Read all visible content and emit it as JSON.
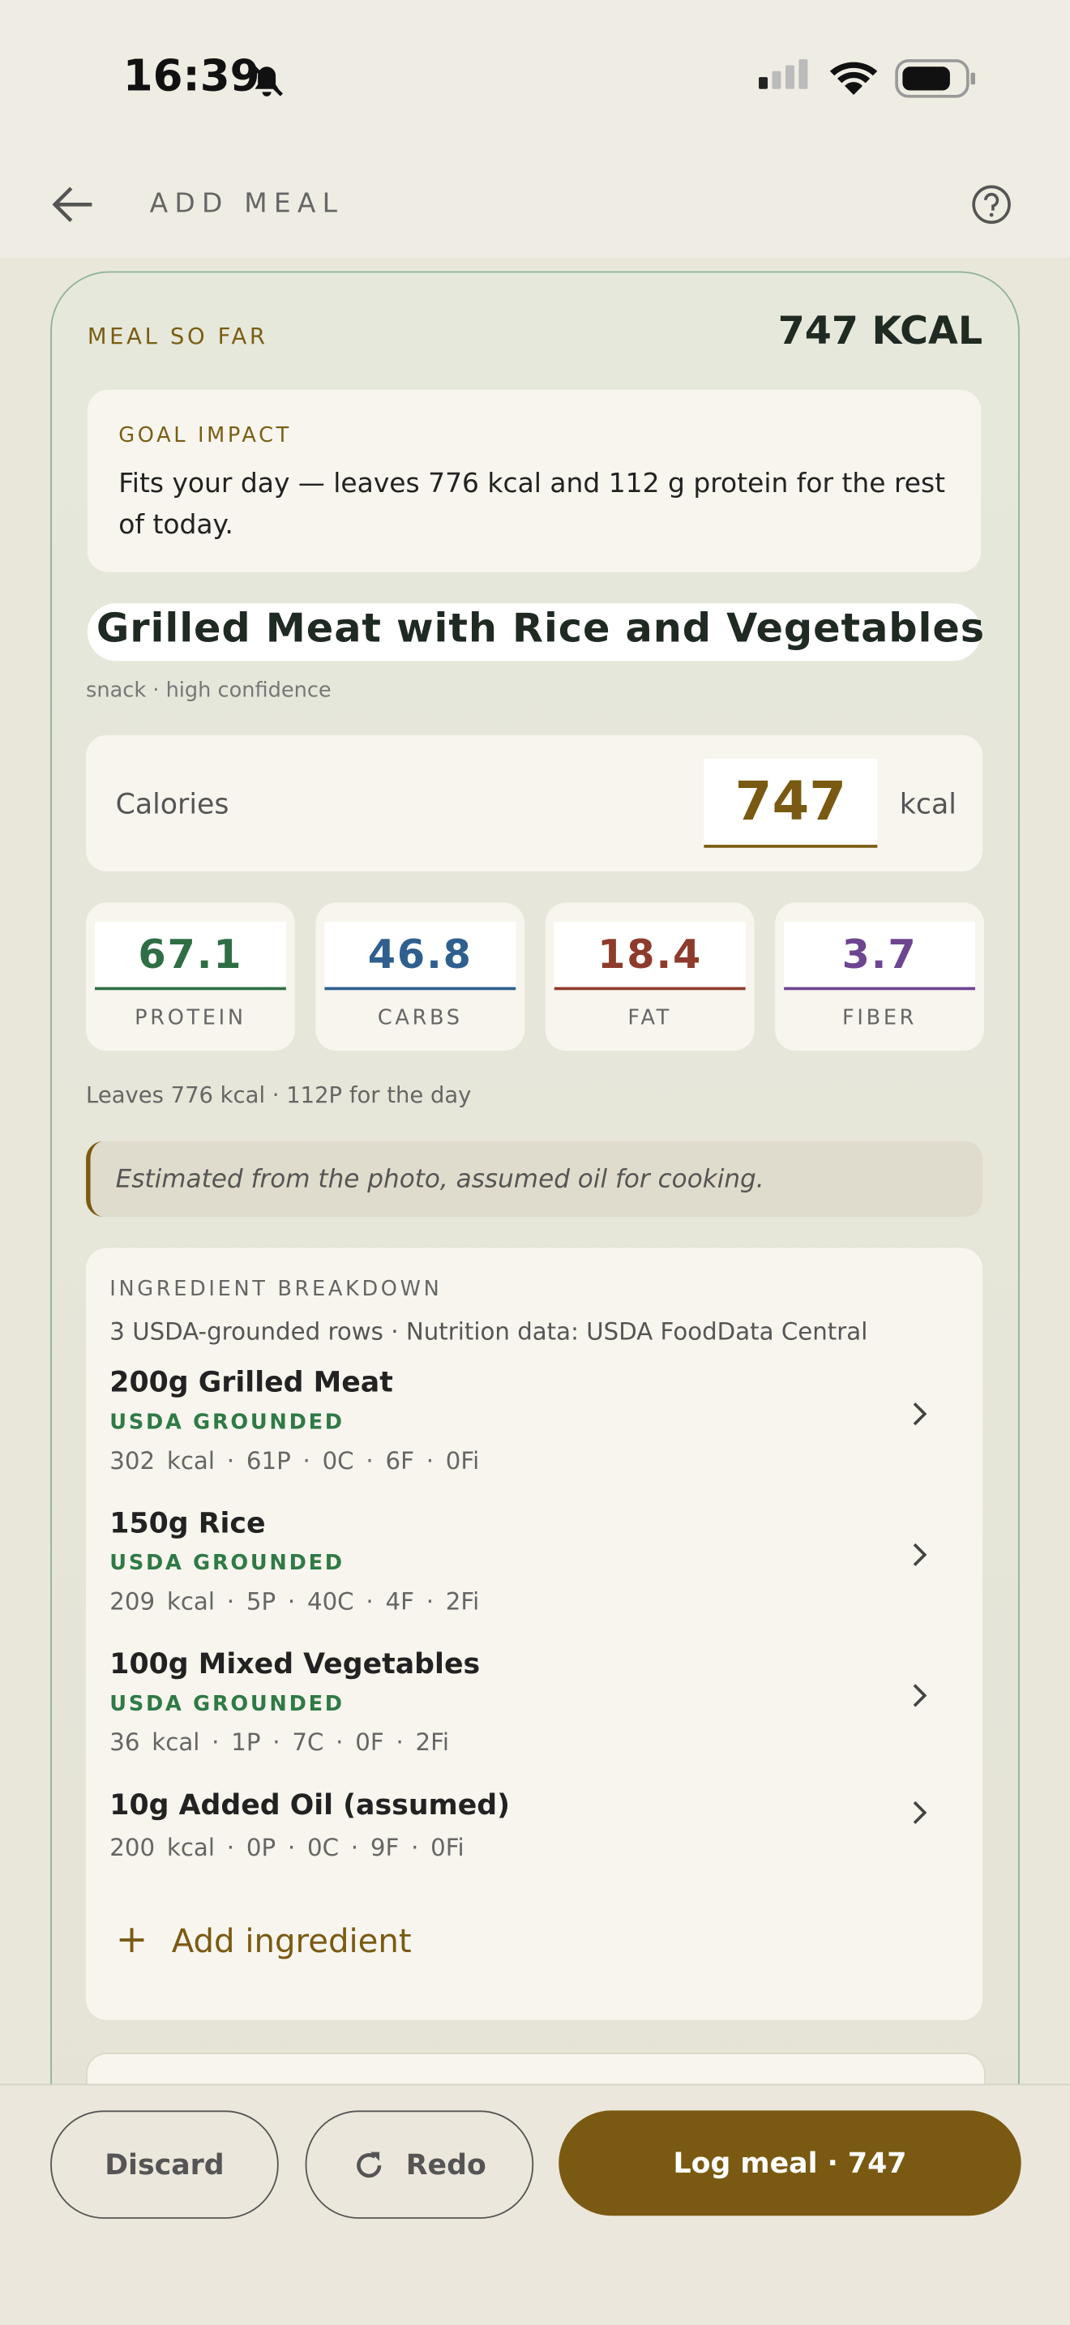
{
  "status_bar": {
    "time": "16:39"
  },
  "header": {
    "title": "ADD MEAL"
  },
  "meal": {
    "label": "MEAL SO FAR",
    "total": "747 KCAL",
    "goal_impact": {
      "label": "GOAL IMPACT",
      "text": "Fits your day — leaves 776 kcal and 112 g protein for the rest of today."
    },
    "name": "Grilled Meat with Rice and Vegetables",
    "meta": "snack · high confidence",
    "calories": {
      "label": "Calories",
      "value": 747,
      "unit": "kcal"
    },
    "macros": [
      {
        "value": 67.1,
        "label": "PROTEIN",
        "color": "#2f6e45"
      },
      {
        "value": 46.8,
        "label": "CARBS",
        "color": "#2f5f8e"
      },
      {
        "value": 18.4,
        "label": "FAT",
        "color": "#8e3b2c"
      },
      {
        "value": 3.7,
        "label": "FIBER",
        "color": "#6e4590"
      }
    ],
    "remaining": "Leaves 776 kcal · 112P for the day",
    "note": "Estimated from the photo, assumed oil for cooking.",
    "breakdown": {
      "title": "INGREDIENT BREAKDOWN",
      "subtitle": "3 USDA-grounded rows · Nutrition data: USDA FoodData Central",
      "items": [
        {
          "name": "200g Grilled Meat",
          "badge": "USDA GROUNDED",
          "stats": "302 kcal · 61P · 0C · 6F · 0Fi"
        },
        {
          "name": "150g Rice",
          "badge": "USDA GROUNDED",
          "stats": "209 kcal · 5P · 40C · 4F · 2Fi"
        },
        {
          "name": "100g Mixed Vegetables",
          "badge": "USDA GROUNDED",
          "stats": "36 kcal · 1P · 7C · 0F · 2Fi"
        },
        {
          "name": "10g Added Oil (assumed)",
          "stats": "200 kcal · 0P · 0C · 9F · 0Fi"
        }
      ],
      "add": "Add ingredient"
    }
  },
  "actions": {
    "discard": "Discard",
    "redo": "Redo",
    "log": "Log meal · 747"
  }
}
